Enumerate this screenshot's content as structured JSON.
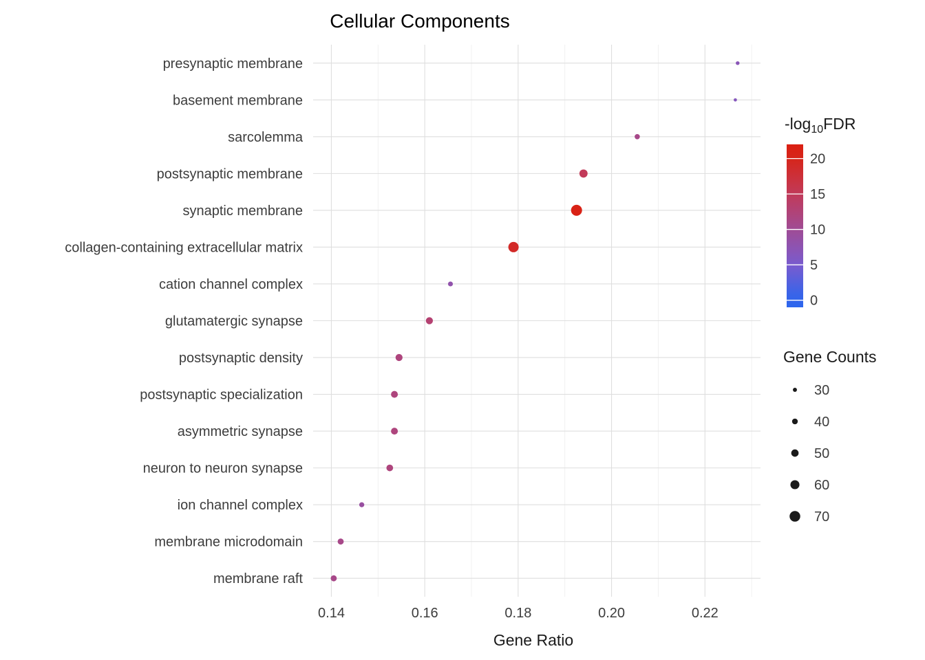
{
  "title": "Cellular Components",
  "chart_data": {
    "type": "scatter",
    "title": "Cellular Components",
    "xlabel": "Gene Ratio",
    "ylabel": "",
    "grid": true,
    "legend_position": "right",
    "xlim": [
      0.1361,
      0.2319
    ],
    "x_ticks": [
      0.14,
      0.16,
      0.18,
      0.2,
      0.22
    ],
    "x_tick_labels": [
      "0.14",
      "0.16",
      "0.18",
      "0.20",
      "0.22"
    ],
    "x_minor_ticks": [
      0.15,
      0.17,
      0.19,
      0.21,
      0.23
    ],
    "categories": [
      "presynaptic membrane",
      "basement membrane",
      "sarcolemma",
      "postsynaptic membrane",
      "synaptic membrane",
      "collagen-containing extracellular matrix",
      "cation channel complex",
      "glutamatergic synapse",
      "postsynaptic density",
      "postsynaptic specialization",
      "asymmetric synapse",
      "neuron to neuron synapse",
      "ion channel complex",
      "membrane microdomain",
      "membrane raft"
    ],
    "points": [
      {
        "label": "presynaptic membrane",
        "gene_ratio": 0.227,
        "gene_count": 28,
        "neg_log10_fdr": 7
      },
      {
        "label": "basement membrane",
        "gene_ratio": 0.2265,
        "gene_count": 25,
        "neg_log10_fdr": 6.5
      },
      {
        "label": "sarcolemma",
        "gene_ratio": 0.2055,
        "gene_count": 37,
        "neg_log10_fdr": 11
      },
      {
        "label": "postsynaptic membrane",
        "gene_ratio": 0.194,
        "gene_count": 55,
        "neg_log10_fdr": 15
      },
      {
        "label": "synaptic membrane",
        "gene_ratio": 0.1925,
        "gene_count": 72,
        "neg_log10_fdr": 21
      },
      {
        "label": "collagen-containing extracellular matrix",
        "gene_ratio": 0.179,
        "gene_count": 68,
        "neg_log10_fdr": 19
      },
      {
        "label": "cation channel complex",
        "gene_ratio": 0.1655,
        "gene_count": 35,
        "neg_log10_fdr": 8
      },
      {
        "label": "glutamatergic synapse",
        "gene_ratio": 0.161,
        "gene_count": 48,
        "neg_log10_fdr": 13
      },
      {
        "label": "postsynaptic density",
        "gene_ratio": 0.1545,
        "gene_count": 48,
        "neg_log10_fdr": 12
      },
      {
        "label": "postsynaptic specialization",
        "gene_ratio": 0.1535,
        "gene_count": 47,
        "neg_log10_fdr": 12
      },
      {
        "label": "asymmetric synapse",
        "gene_ratio": 0.1535,
        "gene_count": 47,
        "neg_log10_fdr": 12
      },
      {
        "label": "neuron to neuron synapse",
        "gene_ratio": 0.1525,
        "gene_count": 46,
        "neg_log10_fdr": 12
      },
      {
        "label": "ion channel complex",
        "gene_ratio": 0.1465,
        "gene_count": 36,
        "neg_log10_fdr": 9
      },
      {
        "label": "membrane microdomain",
        "gene_ratio": 0.142,
        "gene_count": 42,
        "neg_log10_fdr": 11
      },
      {
        "label": "membrane raft",
        "gene_ratio": 0.1405,
        "gene_count": 42,
        "neg_log10_fdr": 11
      }
    ],
    "color_legend": {
      "title": "-log10FDR",
      "title_prefix": "-log",
      "title_sub": "10",
      "title_suffix": "FDR",
      "ticks": [
        0,
        5,
        10,
        15,
        20
      ],
      "tick_labels": [
        "0",
        "5",
        "10",
        "15",
        "20"
      ],
      "bar_range": [
        -1,
        22
      ],
      "gradient_stops": [
        [
          0,
          "#2C66EE"
        ],
        [
          5,
          "#7A5BCE"
        ],
        [
          10,
          "#A04C95"
        ],
        [
          15,
          "#C23A59"
        ],
        [
          20,
          "#D6251A"
        ],
        [
          22,
          "#DB1F12"
        ]
      ]
    },
    "size_legend": {
      "title": "Gene Counts",
      "values": [
        30,
        40,
        50,
        60,
        70
      ],
      "labels": [
        "30",
        "40",
        "50",
        "60",
        "70"
      ]
    }
  },
  "colors": {
    "background": "#FFFFFF",
    "grid_major": "#DEDEDE",
    "grid_minor": "#EFEFEF",
    "axis_text": "#3C3C3C",
    "title_text": "#000000",
    "legend_dot": "#1A1A1A"
  }
}
